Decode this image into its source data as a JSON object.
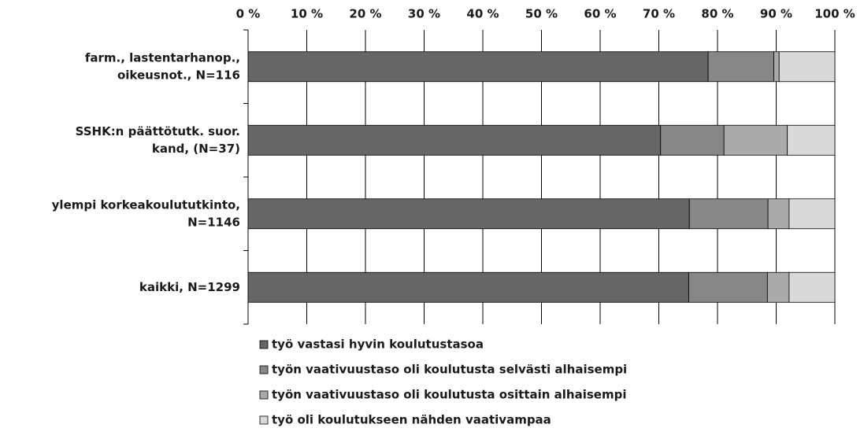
{
  "chart_data": {
    "type": "stacked_barh",
    "categories": [
      [
        "farm., lastentarhanop.,",
        "oikeusnot., N=116"
      ],
      [
        "SSHK:n päättötutk. suor.",
        "kand, (N=37)"
      ],
      [
        "ylempi korkeakoulututkinto,",
        "N=1146"
      ],
      [
        "kaikki, N=1299"
      ]
    ],
    "series": [
      {
        "name": "työ vastasi hyvin koulutustasoa",
        "color": "#666666",
        "values": [
          78.4,
          70.3,
          75.2,
          75.1
        ]
      },
      {
        "name": "työn vaativuustaso oli koulutusta selvästi alhaisempi",
        "color": "#878787",
        "values": [
          11.2,
          10.8,
          13.4,
          13.4
        ]
      },
      {
        "name": "työn vaativuustaso oli koulutusta osittain alhaisempi",
        "color": "#aaaaaa",
        "values": [
          0.9,
          10.8,
          3.6,
          3.7
        ]
      },
      {
        "name": "työ oli koulutukseen nähden vaativampaa",
        "color": "#d9d9d9",
        "values": [
          9.5,
          8.1,
          7.8,
          7.8
        ]
      }
    ],
    "xlim": [
      0,
      100
    ],
    "xticks": [
      {
        "value": 0,
        "label": "0 %"
      },
      {
        "value": 10,
        "label": "10 %"
      },
      {
        "value": 20,
        "label": "20 %"
      },
      {
        "value": 30,
        "label": "30 %"
      },
      {
        "value": 40,
        "label": "40 %"
      },
      {
        "value": 50,
        "label": "50 %"
      },
      {
        "value": 60,
        "label": "60 %"
      },
      {
        "value": 70,
        "label": "70 %"
      },
      {
        "value": 80,
        "label": "80 %"
      },
      {
        "value": 90,
        "label": "90 %"
      },
      {
        "value": 100,
        "label": "100 %"
      }
    ],
    "grid": true
  }
}
